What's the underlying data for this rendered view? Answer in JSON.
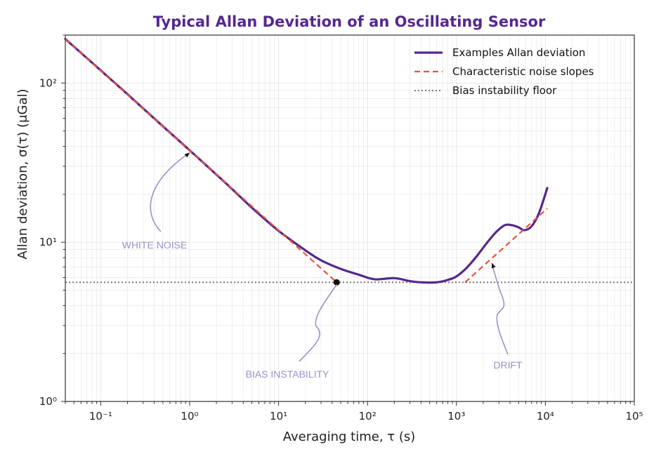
{
  "chart_data": {
    "type": "line",
    "title": "Typical Allan Deviation of an Oscillating Sensor",
    "xlabel": "Averaging time, τ (s)",
    "ylabel": "Allan deviation, σ(τ) (μGal)",
    "xscale": "log",
    "yscale": "log",
    "xlim": [
      0.04,
      100000
    ],
    "ylim": [
      1,
      200
    ],
    "x_ticks": [
      {
        "value": 0.1,
        "label": "10⁻¹"
      },
      {
        "value": 1,
        "label": "10⁰"
      },
      {
        "value": 10,
        "label": "10¹"
      },
      {
        "value": 100,
        "label": "10²"
      },
      {
        "value": 1000,
        "label": "10³"
      },
      {
        "value": 10000,
        "label": "10⁴"
      },
      {
        "value": 100000,
        "label": "10⁵"
      }
    ],
    "y_ticks": [
      {
        "value": 1,
        "label": "10⁰"
      },
      {
        "value": 10,
        "label": "10¹"
      },
      {
        "value": 100,
        "label": "10²"
      }
    ],
    "grid": true,
    "legend_position": "top-right",
    "series": [
      {
        "name": "Examples Allan deviation",
        "style": "solid",
        "color": "#55288f",
        "x": [
          0.04,
          0.1,
          0.2,
          0.5,
          1,
          2,
          3,
          5,
          10,
          20,
          30,
          50,
          80,
          120,
          200,
          300,
          400,
          600,
          800,
          1000,
          1300,
          1700,
          2200,
          2800,
          3500,
          4200,
          5000,
          5800,
          7000,
          8500,
          10500
        ],
        "y": [
          189,
          120,
          85,
          53.5,
          37.8,
          26.6,
          21.6,
          16.5,
          11.8,
          8.9,
          7.7,
          6.8,
          6.25,
          5.85,
          5.95,
          5.7,
          5.6,
          5.6,
          5.8,
          6.1,
          6.9,
          8.2,
          9.9,
          11.6,
          12.8,
          12.8,
          12.4,
          11.9,
          12.6,
          15.3,
          21.9
        ]
      },
      {
        "name": "Characteristic noise slopes",
        "style": "dashed",
        "color": "#e8553a",
        "segments": [
          {
            "x": [
              0.04,
              45
            ],
            "y": [
              189,
              5.6
            ]
          },
          {
            "x": [
              1250,
              10500
            ],
            "y": [
              5.6,
              16.3
            ]
          }
        ]
      },
      {
        "name": "Bias instability floor",
        "style": "dotted",
        "color": "#777777",
        "value": 5.6
      }
    ],
    "marker": {
      "x": 45,
      "y": 5.6,
      "color": "#111111"
    },
    "annotations": [
      {
        "text": "WHITE NOISE",
        "arrow_to": {
          "x": 1,
          "y": 36.5
        }
      },
      {
        "text": "BIAS INSTABILITY",
        "arrow_to": {
          "x": 45,
          "y": 5.6
        }
      },
      {
        "text": "DRIFT",
        "arrow_to": {
          "x": 2500,
          "y": 7.4
        }
      }
    ],
    "colors": {
      "title": "#55288f",
      "annotation": "#a08fc9",
      "grid": "#e4e4e4",
      "axes": "#333333"
    }
  }
}
